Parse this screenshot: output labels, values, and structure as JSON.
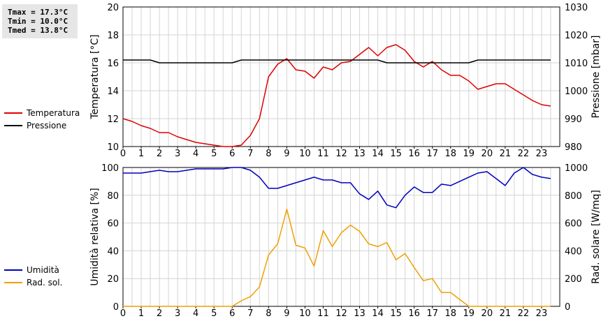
{
  "stats": {
    "tmax": "Tmax = 17.3°C",
    "tmin": "Tmin = 10.0°C",
    "tmed": "Tmed = 13.8°C"
  },
  "chart_data": [
    {
      "type": "line",
      "title": "",
      "x": [
        0,
        0.5,
        1,
        1.5,
        2,
        2.5,
        3,
        3.5,
        4,
        4.5,
        5,
        5.5,
        6,
        6.5,
        7,
        7.5,
        8,
        8.5,
        9,
        9.5,
        10,
        10.5,
        11,
        11.5,
        12,
        12.5,
        13,
        13.5,
        14,
        14.5,
        15,
        15.5,
        16,
        16.5,
        17,
        17.5,
        18,
        18.5,
        19,
        19.5,
        20,
        20.5,
        21,
        21.5,
        22,
        22.5,
        23,
        23.5
      ],
      "xlim": [
        0,
        24
      ],
      "x_ticks": [
        "0",
        "1",
        "2",
        "3",
        "4",
        "5",
        "6",
        "7",
        "8",
        "9",
        "10",
        "11",
        "12",
        "13",
        "14",
        "15",
        "16",
        "17",
        "18",
        "19",
        "20",
        "21",
        "22",
        "23"
      ],
      "ylabel": "Temperatura [°C]",
      "ylim": [
        10,
        20
      ],
      "y_ticks": [
        "10",
        "12",
        "14",
        "16",
        "18",
        "20"
      ],
      "ylabel_right": "Pressione [mbar]",
      "ylim_right": [
        980,
        1030
      ],
      "y_ticks_right": [
        "980",
        "990",
        "1000",
        "1010",
        "1020",
        "1030"
      ],
      "grid": true,
      "series": [
        {
          "name": "Temperatura",
          "color": "#dd0000",
          "axis": "left",
          "values": [
            12.0,
            11.8,
            11.5,
            11.3,
            11.0,
            11.0,
            10.7,
            10.5,
            10.3,
            10.2,
            10.1,
            10.0,
            10.0,
            10.1,
            10.8,
            12.0,
            15.0,
            15.9,
            16.3,
            15.5,
            15.4,
            14.9,
            15.7,
            15.5,
            16.0,
            16.1,
            16.6,
            17.1,
            16.5,
            17.1,
            17.3,
            16.9,
            16.1,
            15.7,
            16.1,
            15.5,
            15.1,
            15.1,
            14.7,
            14.1,
            14.3,
            14.5,
            14.5,
            14.1,
            13.7,
            13.3,
            13.0,
            12.9
          ]
        },
        {
          "name": "Pressione",
          "color": "#000000",
          "axis": "right",
          "values": [
            1011,
            1011,
            1011,
            1011,
            1010,
            1010,
            1010,
            1010,
            1010,
            1010,
            1010,
            1010,
            1010,
            1011,
            1011,
            1011,
            1011,
            1011,
            1011,
            1011,
            1011,
            1011,
            1011,
            1011,
            1011,
            1011,
            1011,
            1011,
            1011,
            1010,
            1010,
            1010,
            1010,
            1010,
            1010,
            1010,
            1010,
            1010,
            1010,
            1011,
            1011,
            1011,
            1011,
            1011,
            1011,
            1011,
            1011,
            1011
          ]
        }
      ]
    },
    {
      "type": "line",
      "title": "",
      "x": [
        0,
        0.5,
        1,
        1.5,
        2,
        2.5,
        3,
        3.5,
        4,
        4.5,
        5,
        5.5,
        6,
        6.5,
        7,
        7.5,
        8,
        8.5,
        9,
        9.5,
        10,
        10.5,
        11,
        11.5,
        12,
        12.5,
        13,
        13.5,
        14,
        14.5,
        15,
        15.5,
        16,
        16.5,
        17,
        17.5,
        18,
        18.5,
        19,
        19.5,
        20,
        20.5,
        21,
        21.5,
        22,
        22.5,
        23,
        23.5
      ],
      "xlim": [
        0,
        24
      ],
      "x_ticks": [
        "0",
        "1",
        "2",
        "3",
        "4",
        "5",
        "6",
        "7",
        "8",
        "9",
        "10",
        "11",
        "12",
        "13",
        "14",
        "15",
        "16",
        "17",
        "18",
        "19",
        "20",
        "21",
        "22",
        "23"
      ],
      "ylabel": "Umidità relativa [%]",
      "ylim": [
        0,
        100
      ],
      "y_ticks": [
        "0",
        "20",
        "40",
        "60",
        "80",
        "100"
      ],
      "ylabel_right": "Rad. solare [W/mq]",
      "ylim_right": [
        0,
        1000
      ],
      "y_ticks_right": [
        "0",
        "200",
        "400",
        "600",
        "800",
        "1000"
      ],
      "grid": true,
      "series": [
        {
          "name": "Umidità",
          "color": "#0000bb",
          "axis": "left",
          "values": [
            96,
            96,
            96,
            97,
            98,
            97,
            97,
            98,
            99,
            99,
            99,
            99,
            100,
            100,
            98,
            93,
            85,
            85,
            87,
            89,
            91,
            93,
            91,
            91,
            89,
            89,
            81,
            77,
            83,
            73,
            71,
            80,
            86,
            82,
            82,
            88,
            87,
            90,
            93,
            96,
            97,
            92,
            87,
            96,
            100,
            95,
            93,
            92
          ]
        },
        {
          "name": "Rad. sol.",
          "color": "#eea000",
          "axis": "right",
          "values": [
            0,
            0,
            0,
            0,
            0,
            0,
            0,
            0,
            0,
            0,
            0,
            0,
            0,
            40,
            70,
            140,
            370,
            450,
            700,
            440,
            420,
            290,
            545,
            430,
            530,
            585,
            540,
            450,
            430,
            460,
            335,
            380,
            280,
            185,
            200,
            100,
            100,
            50,
            0,
            0,
            0,
            0,
            0,
            0,
            0,
            0,
            0,
            0
          ]
        }
      ]
    }
  ]
}
